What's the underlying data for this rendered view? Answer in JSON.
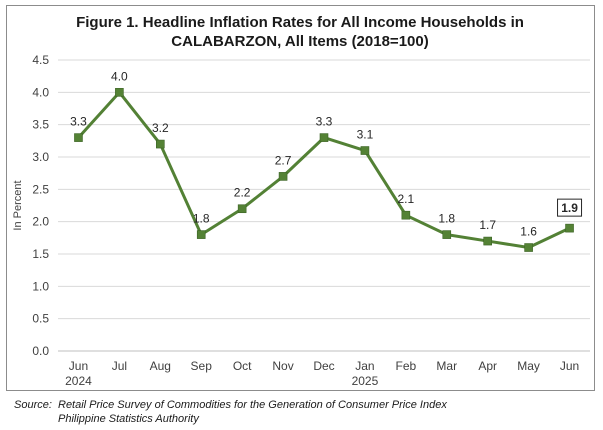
{
  "chart_data": {
    "type": "line",
    "title_lines": [
      "Figure 1. Headline Inflation Rates for All Income Households in",
      "CALABARZON, All Items (2018=100)"
    ],
    "ylabel": "In Percent",
    "xlabel": "",
    "ylim": [
      0,
      4.5
    ],
    "yticks": [
      "0.0",
      "0.5",
      "1.0",
      "1.5",
      "2.0",
      "2.5",
      "3.0",
      "3.5",
      "4.0",
      "4.5"
    ],
    "categories": [
      {
        "month": "Jun",
        "year": "2024"
      },
      {
        "month": "Jul",
        "year": ""
      },
      {
        "month": "Aug",
        "year": ""
      },
      {
        "month": "Sep",
        "year": ""
      },
      {
        "month": "Oct",
        "year": ""
      },
      {
        "month": "Nov",
        "year": ""
      },
      {
        "month": "Dec",
        "year": ""
      },
      {
        "month": "Jan",
        "year": "2025"
      },
      {
        "month": "Feb",
        "year": ""
      },
      {
        "month": "Mar",
        "year": ""
      },
      {
        "month": "Apr",
        "year": ""
      },
      {
        "month": "May",
        "year": ""
      },
      {
        "month": "Jun",
        "year": ""
      }
    ],
    "series": [
      {
        "values": [
          3.3,
          4.0,
          3.2,
          1.8,
          2.2,
          2.7,
          3.3,
          3.1,
          2.1,
          1.8,
          1.7,
          1.6,
          1.9
        ],
        "labels": [
          "3.3",
          "4.0",
          "3.2",
          "1.8",
          "2.2",
          "2.7",
          "3.3",
          "3.1",
          "2.1",
          "1.8",
          "1.7",
          "1.6",
          "1.9"
        ],
        "color": "#538135",
        "marker_color": "#548235"
      }
    ],
    "grid": true,
    "legend": "none"
  },
  "source": {
    "key": "Source:",
    "line1": "Retail Price Survey of Commodities for the Generation of Consumer Price Index",
    "line2": "Philippine Statistics Authority"
  }
}
